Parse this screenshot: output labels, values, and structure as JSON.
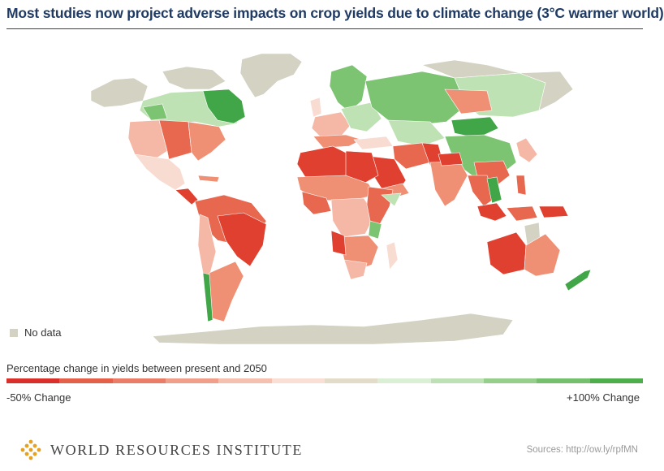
{
  "title": "Most studies now project adverse impacts on crop yields due to climate change (3°C warmer world)",
  "no_data_label": "No data",
  "scale": {
    "title": "Percentage change in yields between present and 2050",
    "min_label": "-50% Change",
    "max_label": "+100% Change",
    "colors": [
      "#d9302c",
      "#e56048",
      "#ea7d68",
      "#ef9f8a",
      "#f5c0b0",
      "#f9dfd4",
      "#e2dcc9",
      "#dbeed6",
      "#bde0b5",
      "#96cf8c",
      "#74c06c",
      "#4fae4c"
    ]
  },
  "colors": {
    "no_data": "#d4d2c3",
    "red_strong": "#e0402f",
    "red": "#e8674f",
    "salmon": "#ef9075",
    "pink": "#f5b8a6",
    "pale": "#f9dcd1",
    "light_green": "#bfe2b4",
    "green": "#7cc472",
    "green_strong": "#41a647"
  },
  "icons": {
    "logo": "wri-logo-icon"
  },
  "footer": {
    "org_name": "WORLD RESOURCES INSTITUTE",
    "source": "Sources: http://ow.ly/rpfMN"
  }
}
